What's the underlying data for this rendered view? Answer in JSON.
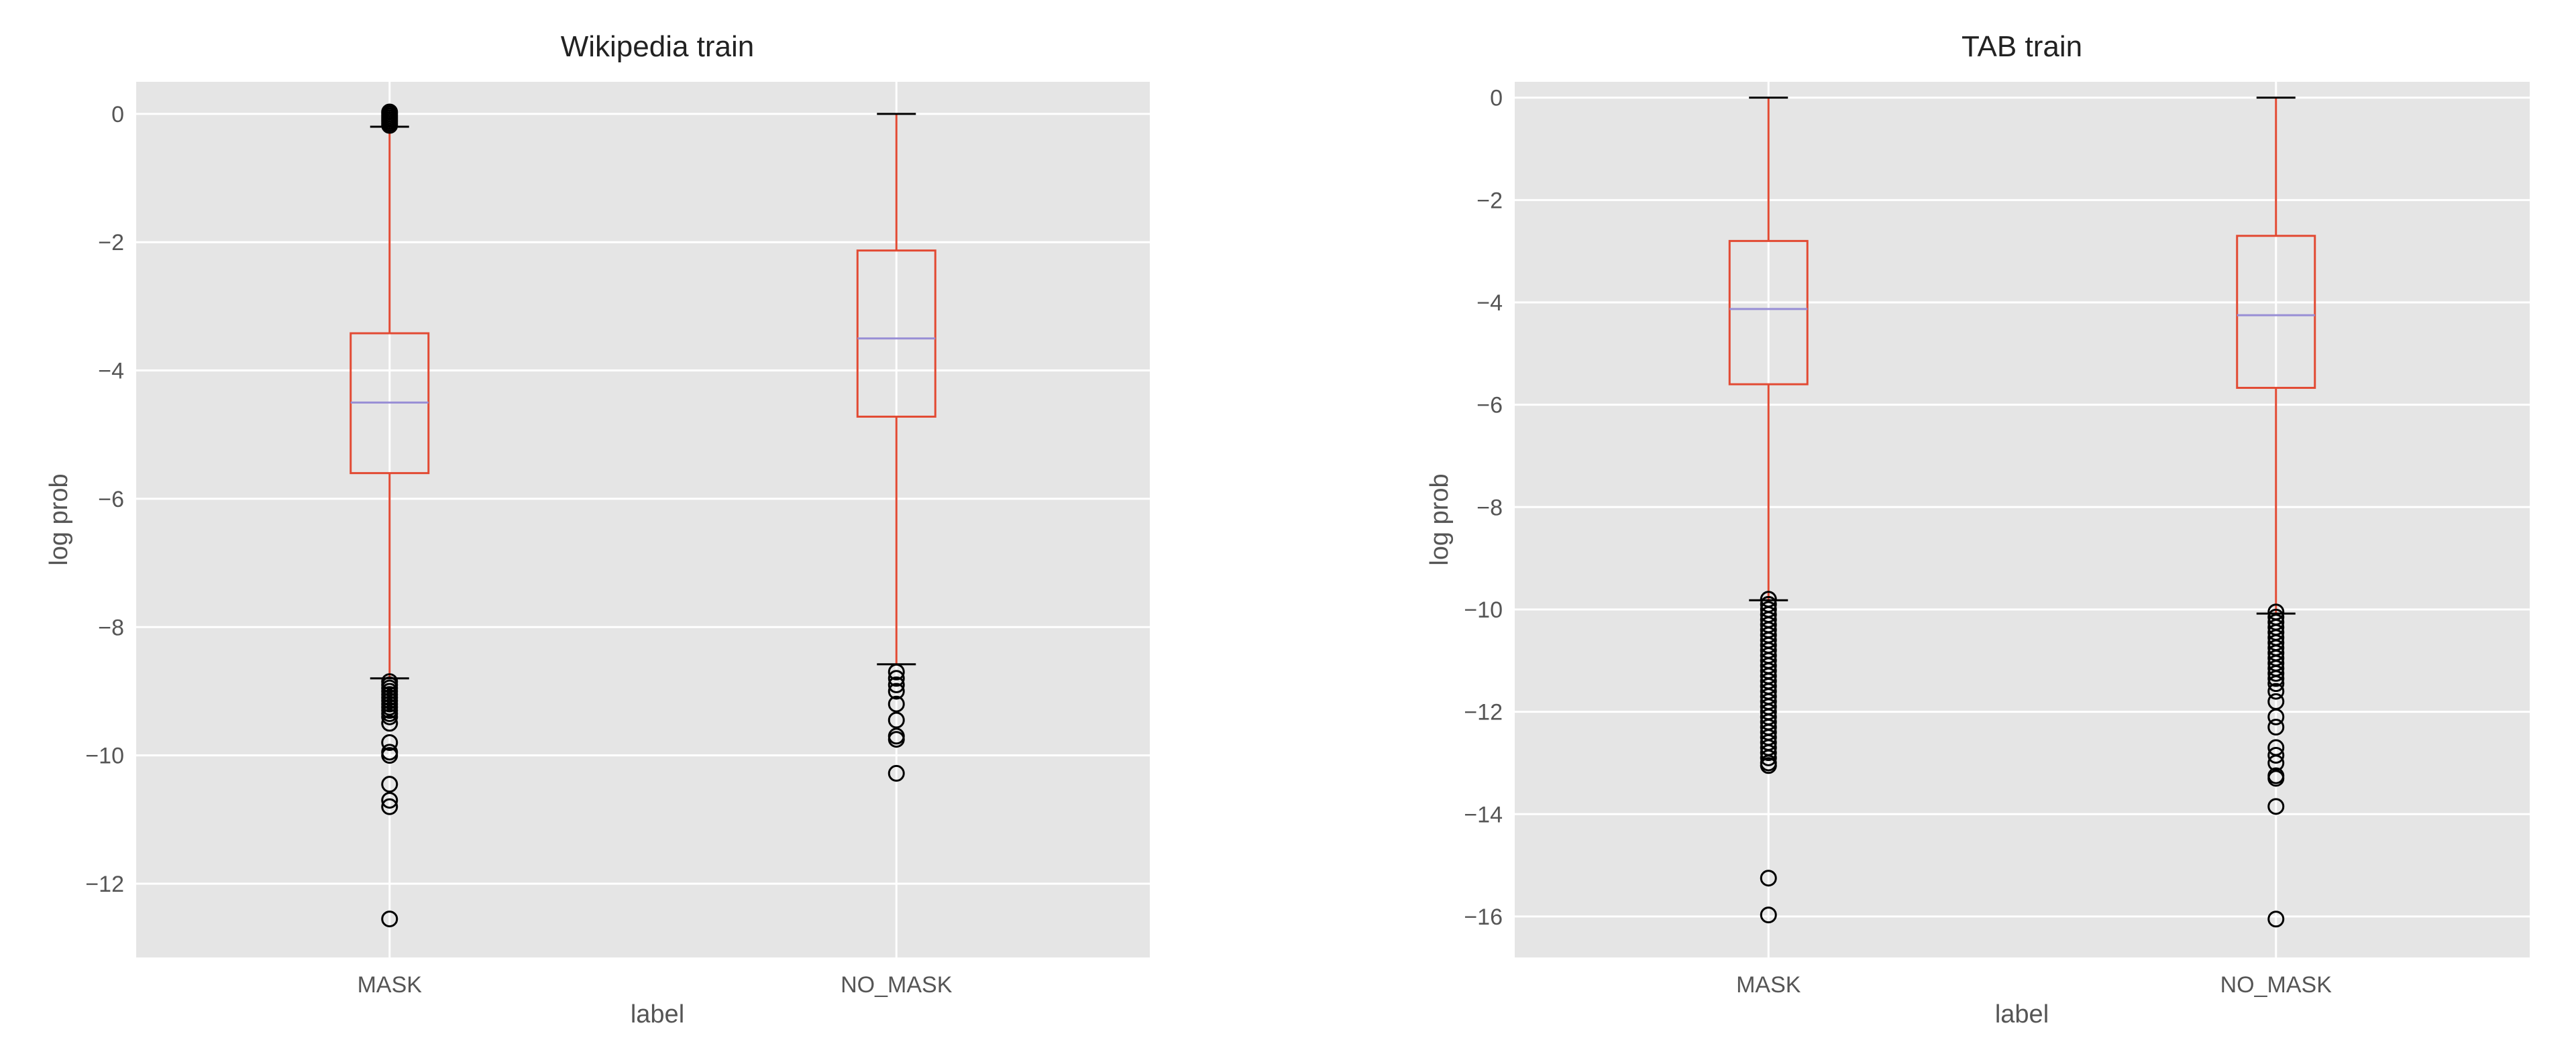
{
  "colors": {
    "panel": "#e5e5e5",
    "grid": "#ffffff",
    "box": "#e24a33",
    "median": "#988ed5",
    "flier": "#000000"
  },
  "chart_data": [
    {
      "type": "box",
      "title": "Wikipedia train",
      "xlabel": "label",
      "ylabel": "log prob",
      "categories": [
        "MASK",
        "NO_MASK"
      ],
      "yticks": [
        0,
        -2,
        -4,
        -6,
        -8,
        -10,
        -12
      ],
      "ytick_labels": [
        "0",
        "−2",
        "−4",
        "−6",
        "−8",
        "−10",
        "−12"
      ],
      "ylim": [
        -13.15,
        0.5
      ],
      "grid": true,
      "boxes": [
        {
          "name": "MASK",
          "whisker_high": -0.2,
          "q3": -3.42,
          "median": -4.5,
          "q1": -5.6,
          "whisker_low": -8.8,
          "outliers": [
            0.03,
            0.0,
            -0.03,
            -0.06,
            -0.09,
            -0.12,
            -0.15,
            -0.18,
            -8.85,
            -8.9,
            -8.95,
            -9.0,
            -9.05,
            -9.1,
            -9.15,
            -9.2,
            -9.25,
            -9.3,
            -9.35,
            -9.4,
            -9.5,
            -9.8,
            -9.95,
            -10.0,
            -10.45,
            -10.7,
            -10.8,
            -12.55
          ]
        },
        {
          "name": "NO_MASK",
          "whisker_high": 0.0,
          "q3": -2.13,
          "median": -3.5,
          "q1": -4.72,
          "whisker_low": -8.58,
          "outliers": [
            -8.7,
            -8.8,
            -8.9,
            -9.0,
            -9.2,
            -9.45,
            -9.7,
            -9.75,
            -10.28
          ]
        }
      ]
    },
    {
      "type": "box",
      "title": "TAB train",
      "xlabel": "label",
      "ylabel": "log prob",
      "categories": [
        "MASK",
        "NO_MASK"
      ],
      "yticks": [
        0,
        -2,
        -4,
        -6,
        -8,
        -10,
        -12,
        -14,
        -16
      ],
      "ytick_labels": [
        "0",
        "−2",
        "−4",
        "−6",
        "−8",
        "−10",
        "−12",
        "−14",
        "−16"
      ],
      "ylim": [
        -16.8,
        0.31
      ],
      "grid": true,
      "boxes": [
        {
          "name": "MASK",
          "whisker_high": 0.0,
          "q3": -2.8,
          "median": -4.13,
          "q1": -5.6,
          "whisker_low": -9.82,
          "outliers": [
            -9.8,
            -9.9,
            -10.0,
            -10.1,
            -10.2,
            -10.3,
            -10.4,
            -10.5,
            -10.6,
            -10.7,
            -10.8,
            -10.9,
            -11.0,
            -11.1,
            -11.2,
            -11.3,
            -11.4,
            -11.5,
            -11.6,
            -11.7,
            -11.8,
            -11.9,
            -12.0,
            -12.1,
            -12.2,
            -12.3,
            -12.4,
            -12.5,
            -12.6,
            -12.7,
            -12.8,
            -12.9,
            -13.0,
            -13.05,
            -15.25,
            -15.97
          ]
        },
        {
          "name": "NO_MASK",
          "whisker_high": 0.0,
          "q3": -2.7,
          "median": -4.25,
          "q1": -5.67,
          "whisker_low": -10.08,
          "outliers": [
            -10.05,
            -10.15,
            -10.25,
            -10.35,
            -10.45,
            -10.55,
            -10.65,
            -10.75,
            -10.85,
            -10.95,
            -11.05,
            -11.15,
            -11.25,
            -11.35,
            -11.45,
            -11.6,
            -11.8,
            -12.1,
            -12.3,
            -12.7,
            -12.85,
            -13.0,
            -13.25,
            -13.3,
            -13.85,
            -16.05
          ]
        }
      ]
    }
  ]
}
